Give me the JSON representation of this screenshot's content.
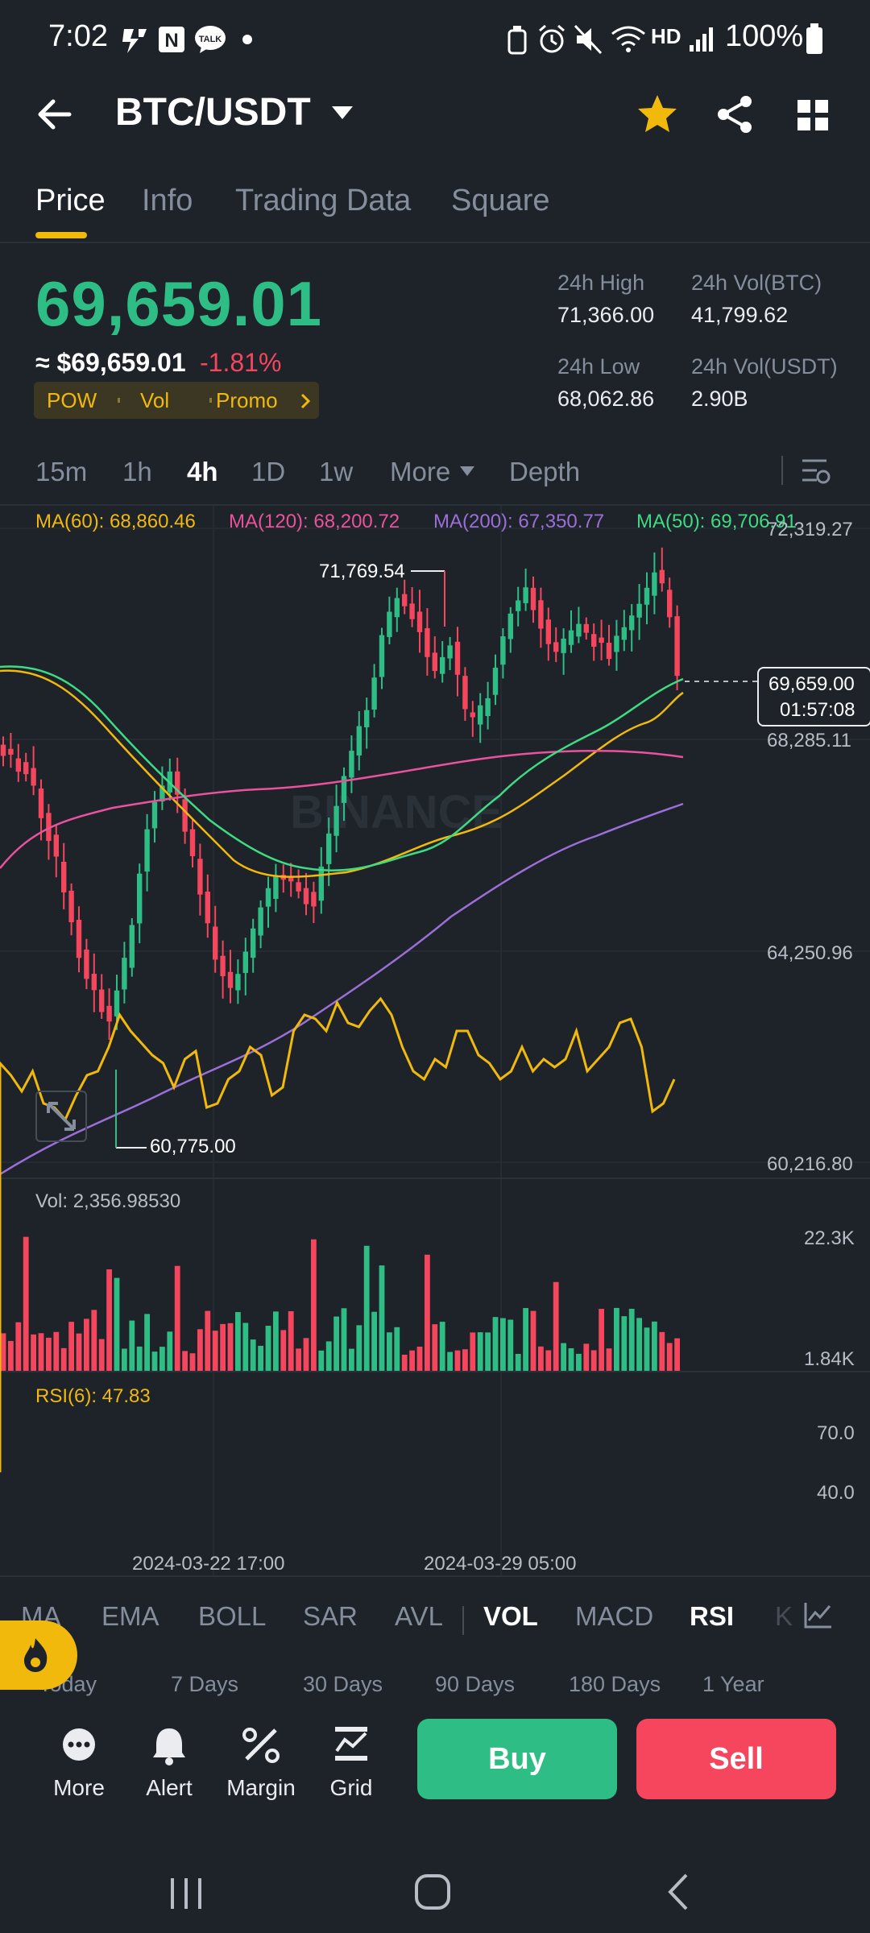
{
  "status_bar": {
    "time": "7:02",
    "battery": "100%",
    "icons": [
      "bolt-icon",
      "n-app-icon",
      "talk-icon",
      "dot-icon",
      "bottle-icon",
      "alarm-icon",
      "mute-icon",
      "wifi-icon",
      "hd-voice-icon",
      "signal-icon",
      "battery-icon"
    ],
    "hd_label": "HD"
  },
  "header": {
    "title": "BTC/USDT",
    "favorite_color": "#f0b90b"
  },
  "tabs": [
    {
      "label": "Price",
      "active": true
    },
    {
      "label": "Info"
    },
    {
      "label": "Trading Data"
    },
    {
      "label": "Square"
    }
  ],
  "price": {
    "last": "69,659.01",
    "usd": "≈ $69,659.01",
    "change": "-1.81%",
    "tags": [
      "POW",
      "Vol",
      "Promo"
    ],
    "stats": {
      "high_label": "24h High",
      "high": "71,366.00",
      "vol_btc_label": "24h Vol(BTC)",
      "vol_btc": "41,799.62",
      "low_label": "24h Low",
      "low": "68,062.86",
      "vol_usdt_label": "24h Vol(USDT)",
      "vol_usdt": "2.90B"
    }
  },
  "intervals": [
    {
      "label": "15m"
    },
    {
      "label": "1h"
    },
    {
      "label": "4h",
      "active": true
    },
    {
      "label": "1D"
    },
    {
      "label": "1w"
    },
    {
      "label": "More"
    },
    {
      "label": "Depth"
    }
  ],
  "ma_legend": [
    {
      "label": "MA(60): 68,860.46",
      "color": "#f0b90b"
    },
    {
      "label": "MA(120): 68,200.72",
      "color": "#e9539d"
    },
    {
      "label": "MA(200): 67,350.77",
      "color": "#9b6fd8"
    },
    {
      "label": "MA(50): 69,706.91",
      "color": "#3ddc84"
    }
  ],
  "price_axis": [
    "72,319.27",
    "68,285.11",
    "64,250.96",
    "60,216.80"
  ],
  "price_axis_range": [
    60216.8,
    72319.27
  ],
  "high_marker": "71,769.54",
  "low_marker": "60,775.00",
  "current_price": "69,659.00",
  "countdown": "01:57:08",
  "watermark": "BINANCE",
  "volume": {
    "label": "Vol: 2,356.98530",
    "axis": [
      "22.3K",
      "1.84K"
    ]
  },
  "rsi": {
    "label": "RSI(6): 47.83",
    "axis": [
      "70.0",
      "40.0"
    ]
  },
  "time_axis": [
    "2024-03-22 17:00",
    "2024-03-29 05:00"
  ],
  "indicators": [
    {
      "label": "MA"
    },
    {
      "label": "EMA"
    },
    {
      "label": "BOLL"
    },
    {
      "label": "SAR"
    },
    {
      "label": "AVL"
    },
    {
      "label": "VOL",
      "active": true
    },
    {
      "label": "MACD"
    },
    {
      "label": "RSI",
      "active": true
    },
    {
      "label": "K"
    }
  ],
  "ranges": [
    "Today",
    "7 Days",
    "30 Days",
    "90 Days",
    "180 Days",
    "1 Year"
  ],
  "actions": [
    {
      "label": "More",
      "icon": "more-icon"
    },
    {
      "label": "Alert",
      "icon": "bell-icon"
    },
    {
      "label": "Margin",
      "icon": "margin-icon"
    },
    {
      "label": "Grid",
      "icon": "grid-bot-icon"
    }
  ],
  "buy_label": "Buy",
  "sell_label": "Sell",
  "colors": {
    "up": "#2ebd85",
    "down": "#f6465d",
    "accent": "#f0b90b",
    "rsi": "#f0b90b"
  }
}
